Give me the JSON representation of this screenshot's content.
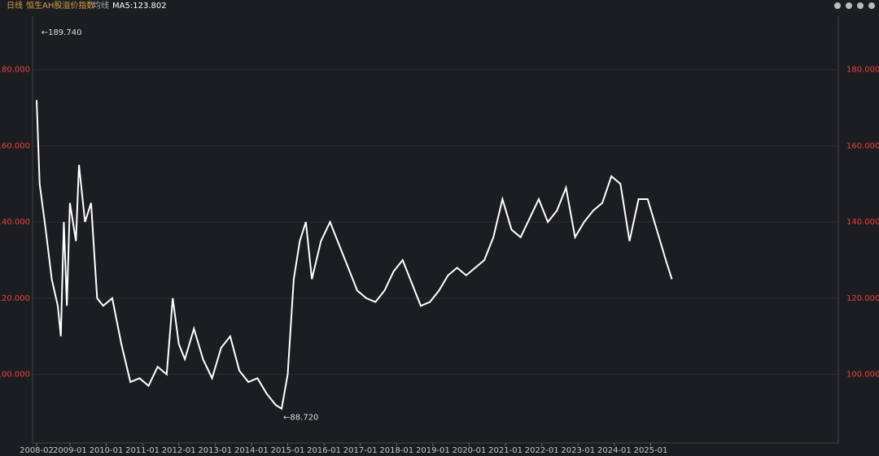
{
  "chart_data": {
    "type": "line",
    "header": {
      "period": "日线",
      "title": "恒生AH股溢价指数",
      "ma_label": "均线",
      "ma_value": "MA5:123.802"
    },
    "x": [
      "2008-02",
      "2008-03",
      "2008-05",
      "2008-07",
      "2008-09",
      "2008-10",
      "2008-11",
      "2008-12",
      "2009-01",
      "2009-03",
      "2009-04",
      "2009-06",
      "2009-08",
      "2009-10",
      "2009-12",
      "2010-03",
      "2010-06",
      "2010-09",
      "2010-12",
      "2011-03",
      "2011-06",
      "2011-09",
      "2011-11",
      "2012-01",
      "2012-03",
      "2012-06",
      "2012-09",
      "2012-12",
      "2013-03",
      "2013-06",
      "2013-09",
      "2013-12",
      "2014-03",
      "2014-06",
      "2014-09",
      "2014-11",
      "2015-01",
      "2015-03",
      "2015-05",
      "2015-07",
      "2015-09",
      "2015-12",
      "2016-03",
      "2016-06",
      "2016-09",
      "2016-12",
      "2017-03",
      "2017-06",
      "2017-09",
      "2017-12",
      "2018-03",
      "2018-06",
      "2018-09",
      "2018-12",
      "2019-03",
      "2019-06",
      "2019-09",
      "2019-12",
      "2020-03",
      "2020-06",
      "2020-09",
      "2020-12",
      "2021-03",
      "2021-06",
      "2021-09",
      "2021-12",
      "2022-03",
      "2022-06",
      "2022-09",
      "2022-12",
      "2023-03",
      "2023-06",
      "2023-09",
      "2023-12",
      "2024-03",
      "2024-06",
      "2024-09",
      "2024-12",
      "2025-03",
      "2025-06",
      "2025-08"
    ],
    "series": [
      {
        "name": "MA5",
        "color": "#ffffff",
        "values": [
          172,
          150,
          138,
          125,
          118,
          110,
          140,
          118,
          145,
          135,
          155,
          140,
          145,
          120,
          118,
          120,
          108,
          98,
          99,
          97,
          102,
          100,
          120,
          108,
          104,
          112,
          104,
          99,
          107,
          110,
          101,
          98,
          99,
          95,
          92,
          91,
          100,
          125,
          135,
          140,
          125,
          135,
          140,
          134,
          128,
          122,
          120,
          119,
          122,
          127,
          130,
          124,
          118,
          119,
          122,
          126,
          128,
          126,
          128,
          130,
          136,
          146,
          138,
          136,
          141,
          146,
          140,
          143,
          149,
          136,
          140,
          143,
          145,
          152,
          150,
          135,
          146,
          146,
          138,
          130,
          125
        ]
      }
    ],
    "annotations": [
      {
        "value": 189.74,
        "label": "←189.740",
        "x": "2008-03"
      },
      {
        "value": 88.72,
        "label": "←88.720",
        "x": "2014-11"
      }
    ],
    "ylim": [
      82,
      194
    ],
    "yticks": [
      {
        "value": 100,
        "label": "100.000"
      },
      {
        "value": 120,
        "label": "120.000"
      },
      {
        "value": 140,
        "label": "140.000"
      },
      {
        "value": 160,
        "label": "160.000"
      },
      {
        "value": 180,
        "label": "180.000"
      }
    ],
    "xticks": [
      "2008-02",
      "2009-01",
      "2010-01",
      "2011-01",
      "2012-01",
      "2013-01",
      "2014-01",
      "2015-01",
      "2016-01",
      "2017-01",
      "2018-01",
      "2019-01",
      "2020-01",
      "2021-01",
      "2022-01",
      "2023-01",
      "2024-01",
      "2025-01"
    ],
    "grid": true
  }
}
